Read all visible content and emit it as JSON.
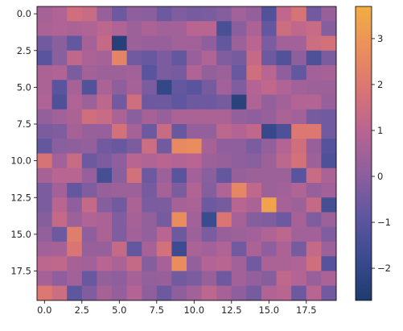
{
  "chart_data": {
    "type": "heatmap",
    "title": "",
    "xlabel": "",
    "ylabel": "",
    "rows": 20,
    "cols": 20,
    "x_extent": [
      -0.5,
      19.5
    ],
    "y_extent": [
      -0.5,
      19.5
    ],
    "y_axis_inverted": true,
    "x_ticks": [
      0.0,
      2.5,
      5.0,
      7.5,
      10.0,
      12.5,
      15.0,
      17.5
    ],
    "x_tick_labels": [
      "0.0",
      "2.5",
      "5.0",
      "7.5",
      "10.0",
      "12.5",
      "15.0",
      "17.5"
    ],
    "y_ticks": [
      0.0,
      2.5,
      5.0,
      7.5,
      10.0,
      12.5,
      15.0,
      17.5
    ],
    "y_tick_labels": [
      "0.0",
      "2.5",
      "5.0",
      "7.5",
      "10.0",
      "12.5",
      "15.0",
      "17.5"
    ],
    "colorbar": {
      "min": -2.7,
      "max": 3.7,
      "ticks": [
        3,
        2,
        1,
        0,
        -1,
        -2
      ],
      "tick_labels": [
        "3",
        "2",
        "1",
        "0",
        "−1",
        "−2"
      ],
      "colormap": [
        "#1f3b6e",
        "#3a4b8f",
        "#5f56a0",
        "#8c5f9e",
        "#b76493",
        "#d97474",
        "#eb8f5c",
        "#f2ad44"
      ]
    },
    "legend": "colorbar-right",
    "grid": false,
    "values": [
      [
        0.6,
        0.8,
        1.6,
        1.4,
        0.3,
        -0.6,
        0.1,
        0.0,
        -0.6,
        -0.2,
        -0.4,
        -0.3,
        -0.1,
        0.5,
        0.2,
        -1.2,
        1.2,
        1.8,
        -0.5,
        0.3
      ],
      [
        0.7,
        0.8,
        0.7,
        0.8,
        1.1,
        0.8,
        0.4,
        0.7,
        0.5,
        0.5,
        1.0,
        1.0,
        -1.4,
        0.0,
        0.7,
        -0.8,
        1.5,
        1.2,
        1.4,
        -0.1
      ],
      [
        -0.5,
        0.0,
        -0.8,
        0.6,
        1.3,
        -2.4,
        0.4,
        0.3,
        0.3,
        0.5,
        0.5,
        0.1,
        -0.8,
        0.4,
        1.0,
        -0.3,
        0.5,
        0.5,
        1.5,
        1.7
      ],
      [
        -1.0,
        0.0,
        1.2,
        0.7,
        0.6,
        2.4,
        -0.5,
        -0.7,
        -0.3,
        -0.8,
        0.3,
        0.8,
        -0.2,
        -0.4,
        1.3,
        -0.6,
        -1.2,
        0.1,
        -1.3,
        -0.3
      ],
      [
        0.7,
        0.8,
        -0.3,
        0.5,
        0.4,
        0.4,
        0.5,
        -1.0,
        -0.3,
        -0.4,
        0.8,
        0.2,
        0.4,
        -0.7,
        1.6,
        1.0,
        0.1,
        -0.8,
        0.5,
        0.6
      ],
      [
        0.7,
        -1.0,
        0.6,
        -1.2,
        0.7,
        0.1,
        0.6,
        -0.3,
        -2.0,
        -0.8,
        -1.0,
        -0.4,
        0.5,
        -0.2,
        0.9,
        1.2,
        0.8,
        0.5,
        0.4,
        0.4
      ],
      [
        0.8,
        -1.3,
        0.8,
        0.4,
        1.1,
        -0.5,
        1.6,
        -0.6,
        -0.6,
        -0.9,
        -0.6,
        -0.6,
        -0.4,
        -2.3,
        0.8,
        0.2,
        0.5,
        0.9,
        0.9,
        0.3
      ],
      [
        0.2,
        0.5,
        0.7,
        1.6,
        1.4,
        0.7,
        0.0,
        0.6,
        0.3,
        0.7,
        0.7,
        0.7,
        0.7,
        0.2,
        0.1,
        0.3,
        0.7,
        0.5,
        -0.4,
        -0.5
      ],
      [
        -0.3,
        -0.2,
        0.6,
        0.3,
        0.3,
        1.7,
        0.6,
        -0.6,
        1.4,
        -0.7,
        0.2,
        0.2,
        1.1,
        0.9,
        1.2,
        -1.9,
        -1.3,
        2.0,
        2.0,
        -0.5
      ],
      [
        -0.8,
        0.0,
        0.1,
        0.2,
        -0.5,
        -0.7,
        -0.3,
        1.5,
        -0.5,
        2.6,
        2.7,
        0.6,
        0.1,
        0.1,
        -0.3,
        0.2,
        0.9,
        1.6,
        0.3,
        -1.1
      ],
      [
        1.8,
        0.5,
        1.4,
        -0.6,
        -0.3,
        0.1,
        1.0,
        0.8,
        1.0,
        0.9,
        1.0,
        0.4,
        0.3,
        0.1,
        0.0,
        0.4,
        1.1,
        1.7,
        0.4,
        -1.3
      ],
      [
        0.6,
        1.0,
        1.0,
        0.3,
        -1.5,
        0.0,
        1.7,
        -0.6,
        0.4,
        -1.0,
        0.5,
        0.0,
        -0.8,
        0.3,
        0.4,
        0.4,
        0.4,
        -1.0,
        1.4,
        0.7
      ],
      [
        -0.3,
        0.5,
        -0.8,
        -0.2,
        0.3,
        0.4,
        0.4,
        -0.4,
        0.6,
        -0.3,
        0.8,
        -0.1,
        0.8,
        2.5,
        1.2,
        0.4,
        0.5,
        0.8,
        0.3,
        0.5
      ],
      [
        -0.3,
        1.0,
        0.1,
        1.3,
        -0.1,
        -0.5,
        0.7,
        -0.3,
        -0.3,
        0.6,
        0.7,
        -0.6,
        -0.4,
        1.0,
        0.7,
        3.4,
        0.6,
        0.4,
        1.3,
        -1.5
      ],
      [
        -0.1,
        1.3,
        0.4,
        0.8,
        0.7,
        -0.2,
        0.6,
        0.2,
        -0.4,
        2.7,
        0.5,
        -1.8,
        1.9,
        0.6,
        -0.1,
        -0.2,
        -0.6,
        0.6,
        -0.2,
        0.4
      ],
      [
        0.2,
        -0.6,
        2.2,
        0.1,
        0.7,
        -0.2,
        0.5,
        0.2,
        1.0,
        -0.6,
        0.4,
        -0.3,
        0.3,
        0.4,
        0.5,
        0.8,
        1.1,
        0.5,
        0.5,
        -0.2
      ],
      [
        0.5,
        0.6,
        1.9,
        0.3,
        0.3,
        1.3,
        -0.8,
        0.6,
        1.7,
        -1.7,
        0.7,
        0.5,
        0.8,
        -0.5,
        0.7,
        0.1,
        0.7,
        -0.4,
        1.3,
        0.4
      ],
      [
        1.1,
        1.2,
        0.6,
        0.5,
        1.0,
        0.7,
        1.3,
        -0.1,
        0.6,
        2.7,
        0.2,
        0.9,
        1.0,
        0.5,
        -0.5,
        0.7,
        0.7,
        0.8,
        1.6,
        -1.1
      ],
      [
        0.6,
        0.1,
        0.5,
        -0.7,
        0.2,
        0.1,
        0.6,
        0.2,
        0.3,
        -0.5,
        -0.3,
        0.3,
        -0.6,
        0.5,
        0.2,
        -0.1,
        1.2,
        0.9,
        0.3,
        0.7
      ],
      [
        2.0,
        1.5,
        -0.9,
        -0.2,
        0.6,
        0.2,
        0.9,
        0.1,
        -0.6,
        0.1,
        0.5,
        1.1,
        0.6,
        0.1,
        -0.4,
        0.8,
        1.0,
        -0.6,
        1.0,
        -0.5
      ]
    ]
  }
}
